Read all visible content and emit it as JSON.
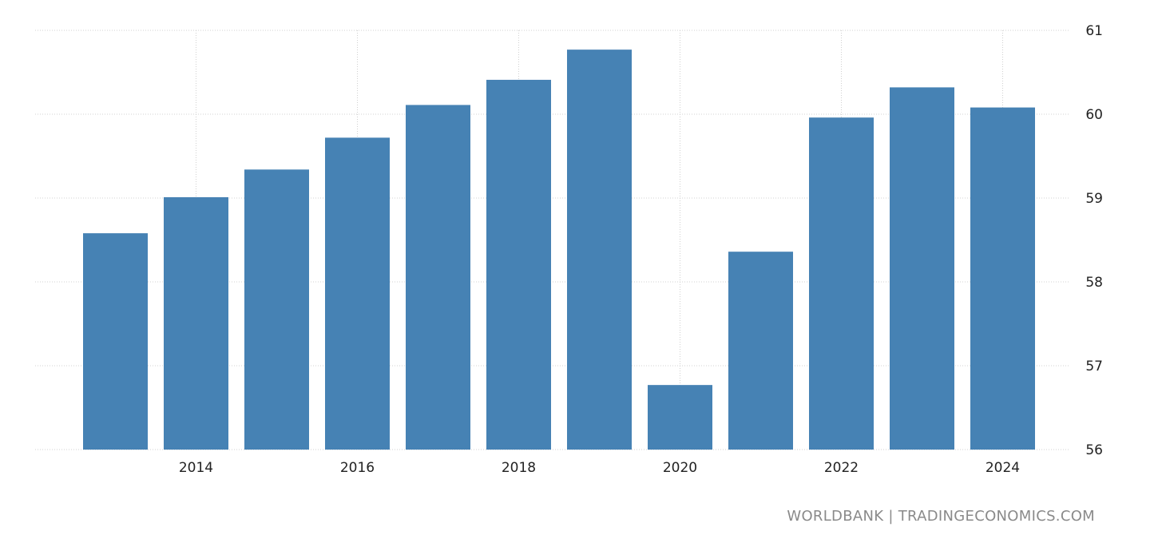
{
  "source": "WORLDBANK | TRADINGECONOMICS.COM",
  "colors": {
    "bar": "#4682b4",
    "grid": "#d0d0d0",
    "text": "#222222",
    "source": "#8a8a8a"
  },
  "chart_data": {
    "type": "bar",
    "title": "",
    "xlabel": "",
    "ylabel": "",
    "categories": [
      "2013",
      "2014",
      "2015",
      "2016",
      "2017",
      "2018",
      "2019",
      "2020",
      "2021",
      "2022",
      "2023",
      "2024"
    ],
    "values": [
      58.58,
      59.01,
      59.34,
      59.72,
      60.11,
      60.41,
      60.77,
      56.77,
      58.36,
      59.96,
      60.32,
      60.08
    ],
    "x_tick_labels": [
      "2014",
      "2016",
      "2018",
      "2020",
      "2022",
      "2024"
    ],
    "y_tick_labels": [
      "56",
      "57",
      "58",
      "59",
      "60",
      "61"
    ],
    "ylim": [
      56,
      61
    ],
    "y_axis_position": "right",
    "grid": true,
    "legend": "none"
  }
}
